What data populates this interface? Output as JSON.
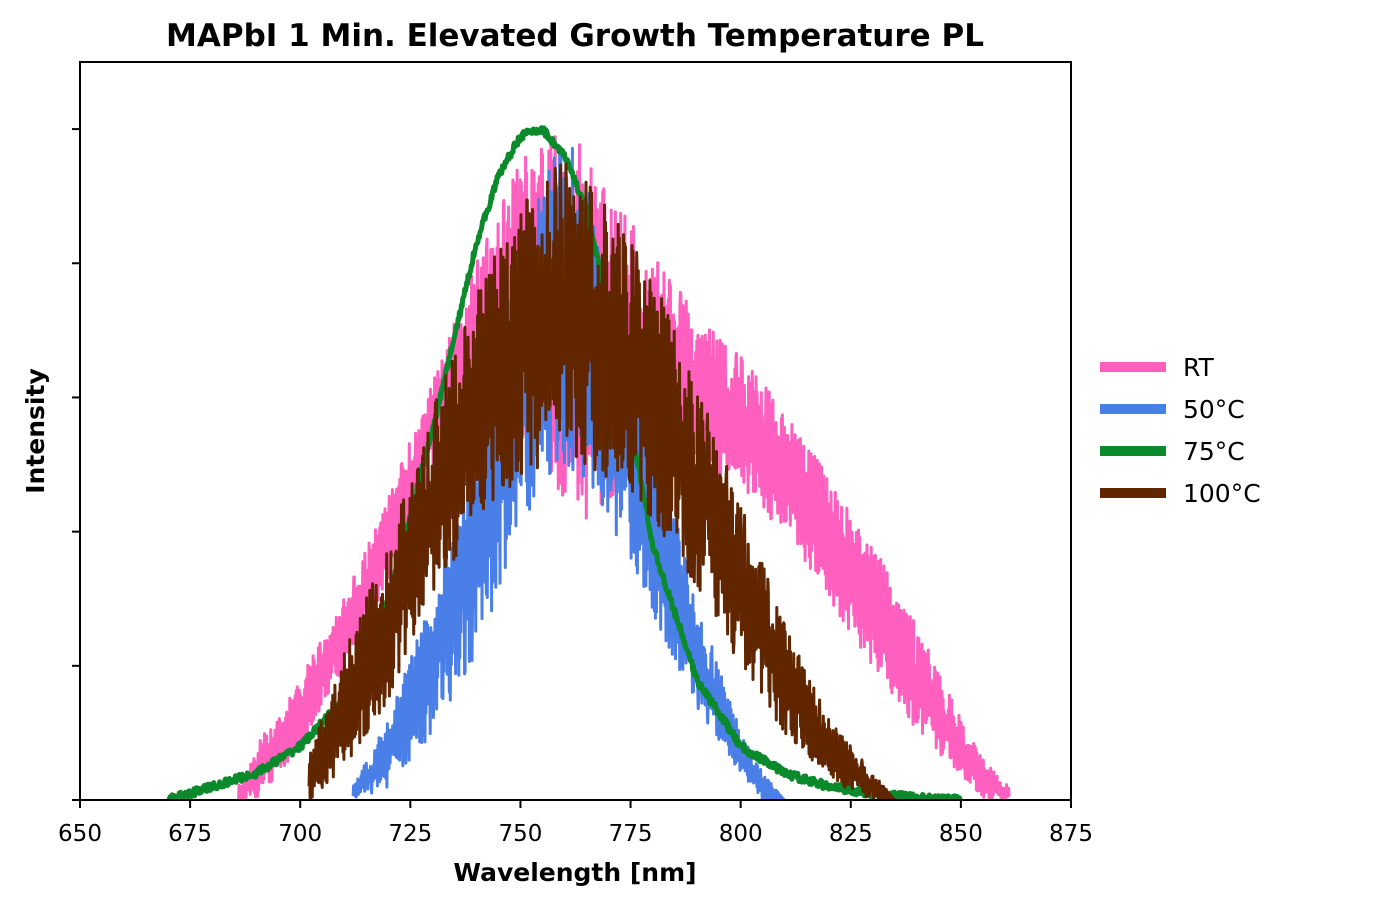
{
  "chart_data": {
    "type": "line",
    "title": "MAPbI 1 Min. Elevated Growth Temperature PL",
    "xlabel": "Wavelength [nm]",
    "ylabel": "Intensity",
    "xlim": [
      650,
      875
    ],
    "ylim": [
      0,
      1.1
    ],
    "x_ticks": [
      650,
      675,
      700,
      725,
      750,
      775,
      800,
      825,
      850,
      875
    ],
    "y_ticks_labeled": false,
    "legend_position": "right-outside",
    "grid": false,
    "series": [
      {
        "name": "RT",
        "color": "#ff5fbf",
        "noisy": true,
        "x": [
          686,
          690,
          700,
          710,
          720,
          730,
          740,
          750,
          755,
          760,
          765,
          770,
          780,
          790,
          800,
          810,
          820,
          830,
          840,
          850,
          855,
          861
        ],
        "y_low": [
          0.0,
          0.0,
          0.08,
          0.2,
          0.32,
          0.48,
          0.58,
          0.55,
          0.5,
          0.45,
          0.42,
          0.45,
          0.5,
          0.5,
          0.46,
          0.4,
          0.3,
          0.2,
          0.1,
          0.04,
          0.0,
          0.0
        ],
        "y_high": [
          0.02,
          0.08,
          0.18,
          0.3,
          0.45,
          0.62,
          0.8,
          0.95,
          1.0,
          1.0,
          0.98,
          0.9,
          0.82,
          0.72,
          0.66,
          0.58,
          0.48,
          0.38,
          0.26,
          0.12,
          0.06,
          0.02
        ]
      },
      {
        "name": "50°C",
        "color": "#4a7fe8",
        "noisy": true,
        "x": [
          712,
          720,
          730,
          740,
          750,
          755,
          760,
          765,
          770,
          780,
          790,
          800,
          805,
          810
        ],
        "y_low": [
          0.0,
          0.02,
          0.1,
          0.22,
          0.4,
          0.48,
          0.5,
          0.48,
          0.42,
          0.28,
          0.14,
          0.04,
          0.0,
          0.0
        ],
        "y_high": [
          0.02,
          0.12,
          0.3,
          0.55,
          0.8,
          0.92,
          1.0,
          0.92,
          0.8,
          0.55,
          0.3,
          0.1,
          0.04,
          0.0
        ]
      },
      {
        "name": "75°C",
        "color": "#0a8a2a",
        "noisy": false,
        "x": [
          670,
          680,
          690,
          700,
          710,
          720,
          730,
          740,
          745,
          750,
          755,
          760,
          765,
          770,
          775,
          780,
          790,
          800,
          810,
          820,
          830,
          840,
          850
        ],
        "y": [
          0.0,
          0.02,
          0.04,
          0.08,
          0.15,
          0.3,
          0.55,
          0.83,
          0.93,
          0.99,
          1.0,
          0.96,
          0.88,
          0.73,
          0.56,
          0.38,
          0.18,
          0.08,
          0.04,
          0.02,
          0.01,
          0.003,
          0.0
        ]
      },
      {
        "name": "100°C",
        "color": "#612600",
        "noisy": true,
        "x": [
          702,
          710,
          720,
          730,
          740,
          750,
          755,
          760,
          765,
          770,
          780,
          790,
          800,
          810,
          820,
          830,
          835
        ],
        "y_low": [
          0.0,
          0.05,
          0.15,
          0.3,
          0.42,
          0.48,
          0.5,
          0.52,
          0.5,
          0.48,
          0.42,
          0.32,
          0.2,
          0.1,
          0.03,
          0.0,
          0.0
        ],
        "y_high": [
          0.08,
          0.22,
          0.38,
          0.58,
          0.76,
          0.88,
          0.93,
          0.95,
          0.92,
          0.88,
          0.78,
          0.62,
          0.44,
          0.26,
          0.12,
          0.04,
          0.0
        ]
      }
    ]
  }
}
